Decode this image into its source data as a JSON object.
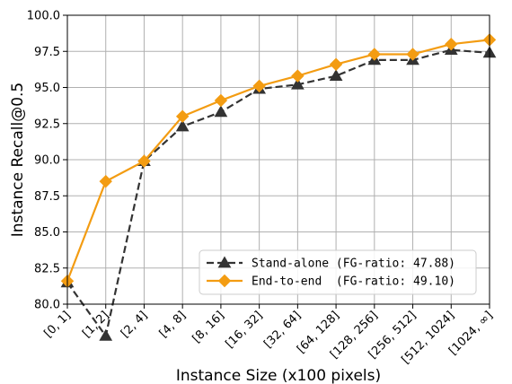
{
  "chart_data": {
    "type": "line",
    "title": "",
    "xlabel": "Instance Size (x100 pixels)",
    "ylabel": "Instance Recall@0.5",
    "categories": [
      "[0, 1]",
      "[1, 2]",
      "[2, 4]",
      "[4, 8]",
      "[8, 16]",
      "[16, 32]",
      "[32, 64]",
      "[64, 128]",
      "[128, 256]",
      "[256, 512]",
      "[512, 1024]",
      "[1024, ∞]"
    ],
    "ylim": [
      80.0,
      100.0
    ],
    "yticks": [
      "80.0",
      "82.5",
      "85.0",
      "87.5",
      "90.0",
      "92.5",
      "95.0",
      "97.5",
      "100.0"
    ],
    "grid": true,
    "legend_position": "lower-right",
    "series": [
      {
        "name": "Stand-alone (FG-ratio: 47.88)",
        "color": "#333333",
        "marker": "triangle",
        "line_style": "dashed",
        "values": [
          81.5,
          77.8,
          89.9,
          92.3,
          93.3,
          94.9,
          95.2,
          95.8,
          96.9,
          96.9,
          97.6,
          97.4
        ]
      },
      {
        "name": "End-to-end  (FG-ratio: 49.10)",
        "color": "#f39c12",
        "marker": "diamond",
        "line_style": "solid",
        "values": [
          81.6,
          88.5,
          89.9,
          93.0,
          94.1,
          95.1,
          95.8,
          96.6,
          97.3,
          97.3,
          98.0,
          98.3
        ]
      }
    ]
  }
}
